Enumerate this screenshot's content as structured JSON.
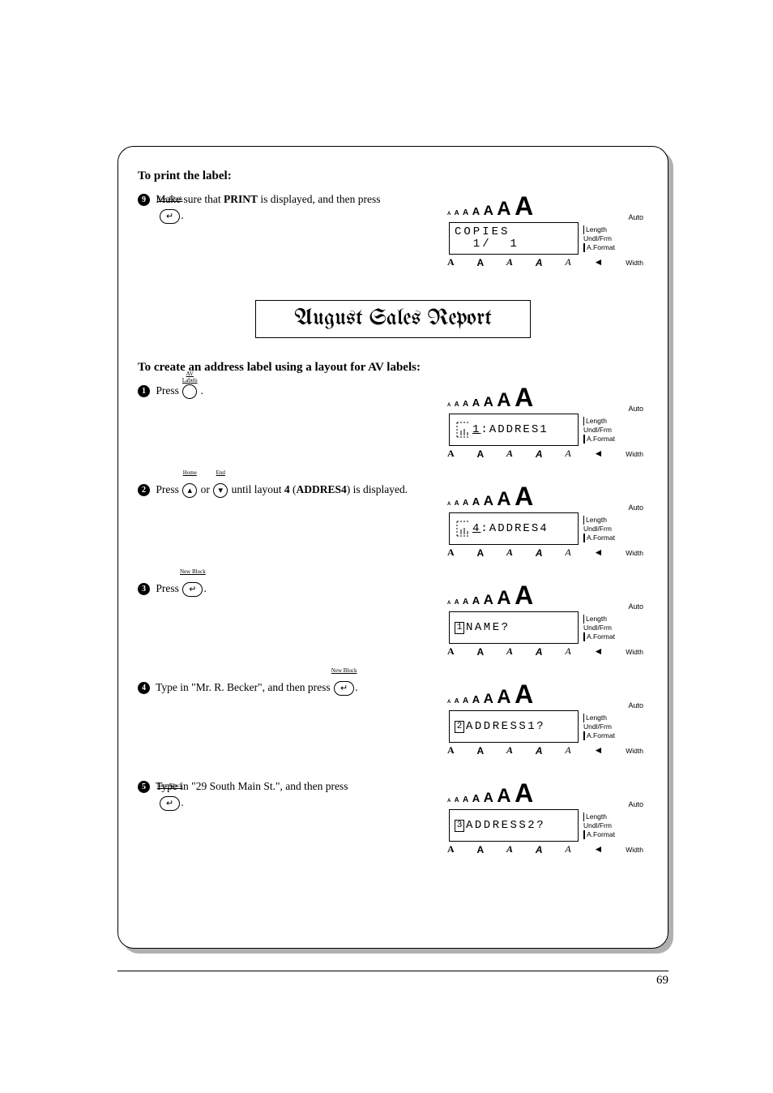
{
  "page_number": "69",
  "section1": {
    "heading": "To print the label:",
    "step_num": "9",
    "text_before": "Make sure that ",
    "text_bold": "PRINT",
    "text_after": " is displayed, and then press ",
    "key_label": "New Block",
    "key_glyph": "↵",
    "period": "."
  },
  "label_preview": "August Sales Report",
  "section2": {
    "heading": "To create an address label using a layout for AV labels:",
    "steps": [
      {
        "num": "1",
        "text_before": "Press ",
        "key1_label": "AV\nLabels",
        "key1_round": true,
        "text_after": " .",
        "lcd": {
          "line1_prefix": "dots",
          "line1": "1 :ADDRES1"
        }
      },
      {
        "num": "2",
        "text_before": "Press ",
        "key1_label": "Home",
        "key1_glyph": "▴",
        "key1_round": true,
        "mid": " or ",
        "key2_label": "End",
        "key2_glyph": "▾",
        "key2_round": true,
        "text_after_1": " until layout ",
        "text_bold_1": "4",
        "text_after_2": " (",
        "text_bold_2": "ADDRES4",
        "text_after_3": ") is displayed.",
        "lcd": {
          "line1_prefix": "dots",
          "line1": "4 :ADDRES4"
        }
      },
      {
        "num": "3",
        "text_before": "Press ",
        "key1_label": "New Block",
        "key1_glyph": "↵",
        "text_after": ".",
        "lcd": {
          "inv": "1",
          "line1": "NAME?"
        }
      },
      {
        "num": "4",
        "text_before": "Type in \"Mr. R. Becker\", and then press ",
        "key1_label": "New Block",
        "key1_glyph": "↵",
        "text_after": ".",
        "lcd": {
          "inv": "2",
          "line1": "ADDRESS1?"
        }
      },
      {
        "num": "5",
        "text_before": "Type in \"29 South Main St.\", and then press ",
        "key1_label": "New Block",
        "key1_glyph": "↵",
        "text_after": ".",
        "just": true,
        "lcd": {
          "inv": "3",
          "line1": "ADDRESS2?"
        }
      }
    ]
  },
  "lcd_common": {
    "top_auto": "Auto",
    "side": [
      "Length",
      "Undl/Frm",
      "A.Format"
    ],
    "bot_width": "Width",
    "styles_row": [
      "A",
      "A",
      "A",
      "A",
      "A",
      "A"
    ],
    "size_run_sizes": [
      6,
      8,
      10,
      13,
      17,
      24,
      32
    ],
    "triangle": "◄"
  },
  "screen_copies": {
    "line1": "COPIES",
    "line2": "  1/  1"
  }
}
